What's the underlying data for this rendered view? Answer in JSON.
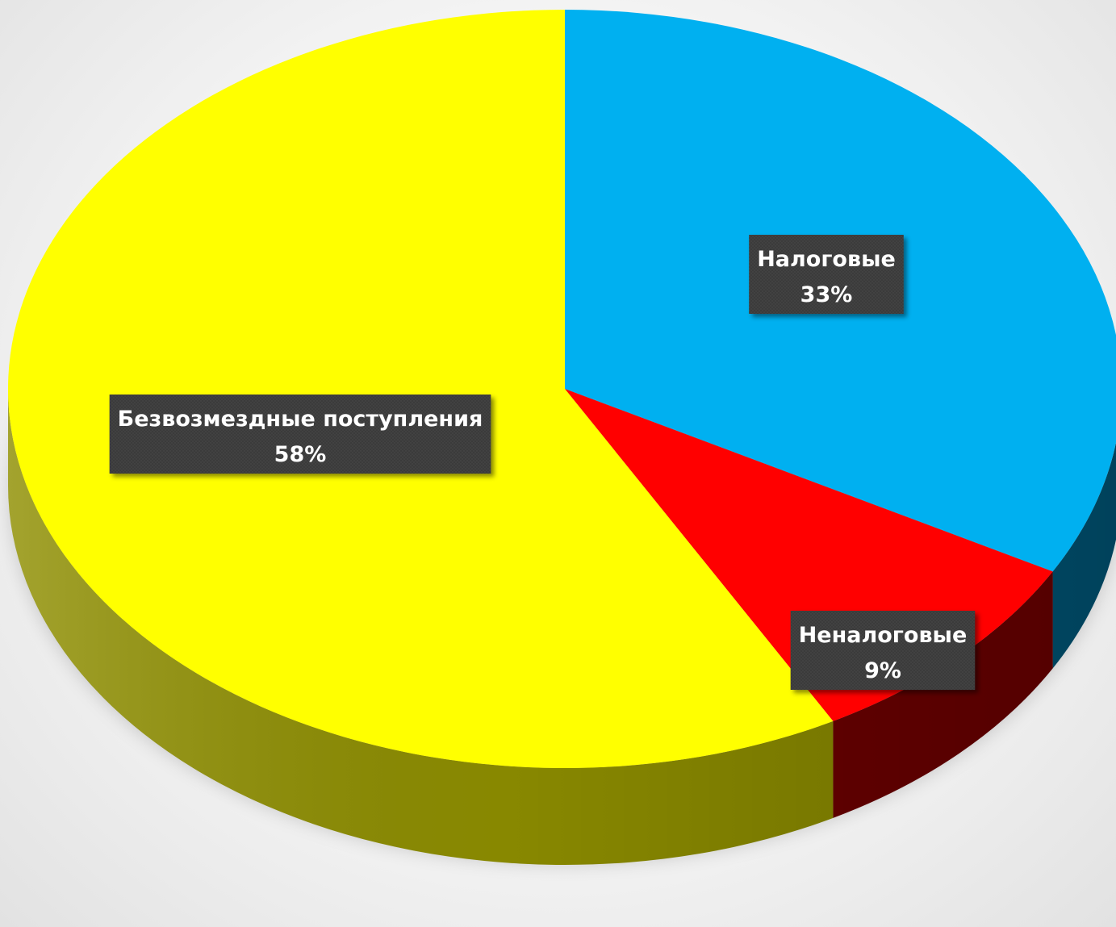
{
  "chart_data": {
    "type": "pie",
    "title": "",
    "variant": "3d",
    "start_angle_deg": 0,
    "direction": "clockwise",
    "slices": [
      {
        "name": "Налоговые",
        "percent_label": "33%",
        "value": 33,
        "color": "#00b0f0",
        "side_color": "#00587a"
      },
      {
        "name": "Неналоговые",
        "percent_label": "9%",
        "value": 9,
        "color": "#ff0000",
        "side_color": "#6e0000"
      },
      {
        "name": "Безвозмездные поступления",
        "percent_label": "58%",
        "value": 58,
        "color": "#ffff00",
        "side_color": "#8f8f00"
      }
    ],
    "data_label_style": {
      "background": "#3f3f3f",
      "text_color": "#ffffff"
    },
    "legend": "none"
  }
}
